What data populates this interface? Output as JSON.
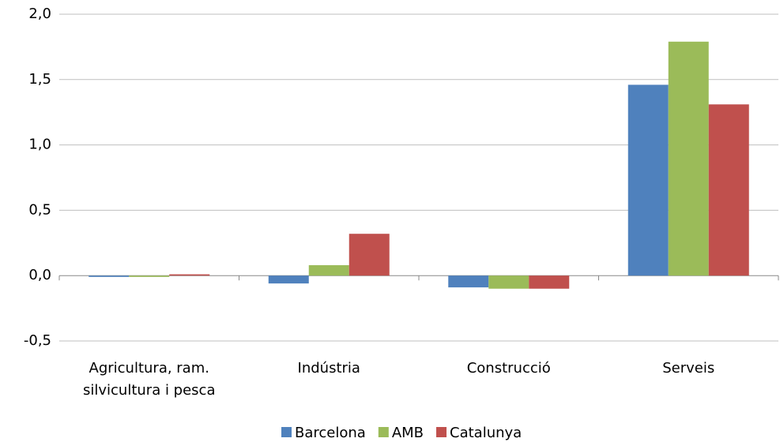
{
  "chart_data": {
    "type": "bar",
    "categories": [
      "Agricultura, ram. silvicultura i pesca",
      "Indústria",
      "Construcció",
      "Serveis"
    ],
    "series": [
      {
        "name": "Barcelona",
        "color": "#4f81bd",
        "values": [
          -0.01,
          -0.06,
          -0.09,
          1.46
        ]
      },
      {
        "name": "AMB",
        "color": "#9bbb59",
        "values": [
          -0.01,
          0.08,
          -0.1,
          1.79
        ]
      },
      {
        "name": "Catalunya",
        "color": "#c0504d",
        "values": [
          0.01,
          0.32,
          -0.1,
          1.31
        ]
      }
    ],
    "ylim": [
      -0.5,
      2.0
    ],
    "yticks": [
      {
        "value": -0.5,
        "label": "-0,5"
      },
      {
        "value": 0,
        "label": "0,0"
      },
      {
        "value": 0.5,
        "label": "0,5"
      },
      {
        "value": 1.0,
        "label": "1,0"
      },
      {
        "value": 1.5,
        "label": "1,5"
      },
      {
        "value": 2.0,
        "label": "2,0"
      }
    ],
    "grid": true,
    "legend": "bottom"
  }
}
